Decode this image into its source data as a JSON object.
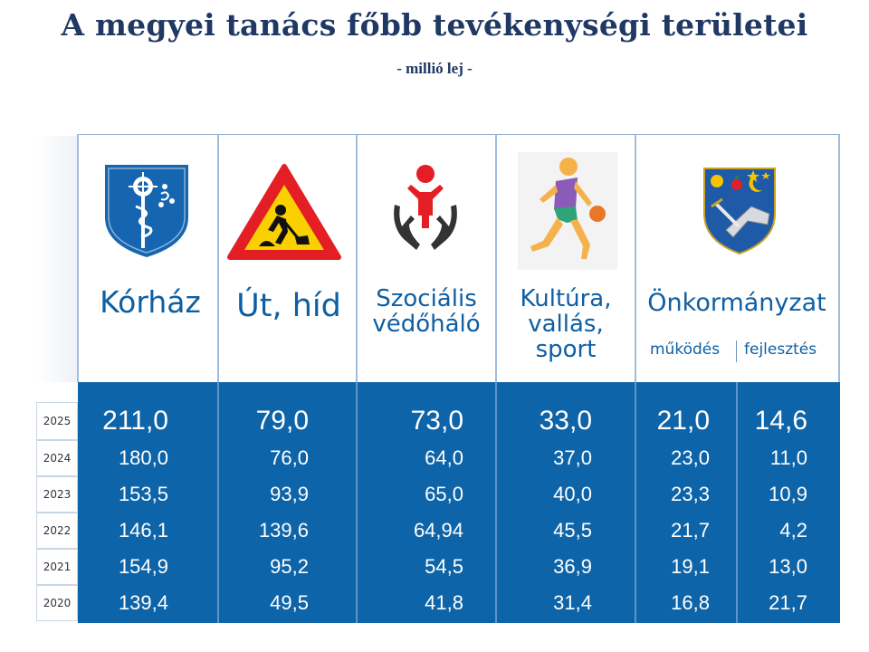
{
  "title": "A megyei tanács főbb tevékenységi területei",
  "subtitle": "- millió lej -",
  "chart_data": {
    "type": "table",
    "title": "A megyei tanács főbb tevékenységi területei",
    "unit": "- millió lej -",
    "years": [
      "2025",
      "2024",
      "2023",
      "2022",
      "2021",
      "2020"
    ],
    "columns": [
      {
        "label": "Kórház",
        "values": [
          "211,0",
          "180,0",
          "153,5",
          "146,1",
          "154,9",
          "139,4"
        ]
      },
      {
        "label": "Út, híd",
        "values": [
          "79,0",
          "76,0",
          "93,9",
          "139,6",
          "95,2",
          "49,5"
        ]
      },
      {
        "label": "Szociális védőháló",
        "values": [
          "73,0",
          "64,0",
          "65,0",
          "64,94",
          "54,5",
          "41,8"
        ]
      },
      {
        "label": "Kultúra, vallás, sport",
        "values": [
          "33,0",
          "37,0",
          "40,0",
          "45,5",
          "36,9",
          "31,4"
        ]
      },
      {
        "label": "Önkormányzat működés",
        "values": [
          "21,0",
          "23,0",
          "23,3",
          "21,7",
          "19,1",
          "16,8"
        ]
      },
      {
        "label": "Önkormányzat fejlesztés",
        "values": [
          "14,6",
          "11,0",
          "10,9",
          "4,2",
          "13,0",
          "21,7"
        ]
      }
    ]
  },
  "headers": {
    "korhaz": "Kórház",
    "ut": "Út, híd",
    "szoc_1": "Szociális",
    "szoc_2": "védőháló",
    "kult_1": "Kultúra,",
    "kult_2": "vallás, sport",
    "onk": "Önkormányzat",
    "onk_mukodes": "működés",
    "onk_fejlesztes": "fejlesztés"
  },
  "icons": {
    "korhaz": "hospital-shield-icon",
    "ut": "roadwork-sign-icon",
    "szoc": "social-care-hands-icon",
    "kult": "basketball-player-icon",
    "onk": "county-coat-of-arms-icon"
  },
  "colors": {
    "title": "#1f3864",
    "header_text": "#0e5fa3",
    "data_bg": "#0e64a8"
  }
}
